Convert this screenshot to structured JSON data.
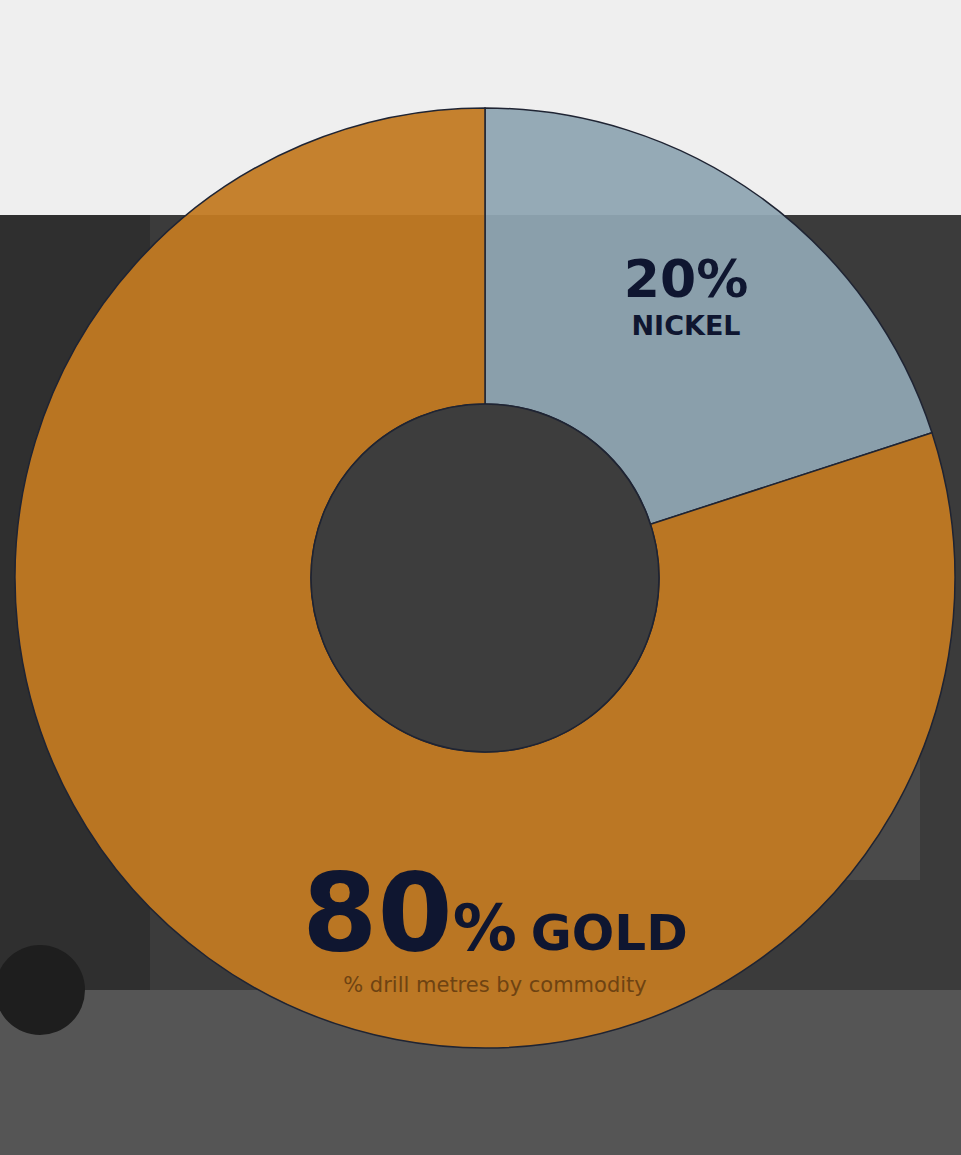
{
  "chart_data": {
    "type": "donut",
    "subtitle": "% drill metres by commodity",
    "categories": [
      "NICKEL",
      "GOLD"
    ],
    "values": [
      20,
      80
    ],
    "value_labels": [
      "20%",
      "80%"
    ],
    "colors": [
      "#8fa6b2",
      "#c27a22"
    ],
    "data_labels": true
  }
}
